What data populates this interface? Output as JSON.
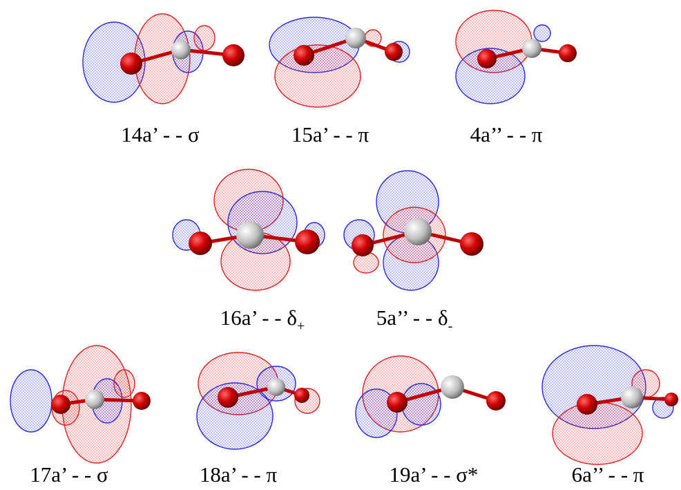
{
  "orbitals": [
    {
      "label": "14a’ - - σ"
    },
    {
      "label": "15a’ - - π"
    },
    {
      "label": "4a’’ - - π"
    },
    {
      "label": "16a’ - - δ",
      "subscript": "+"
    },
    {
      "label": "5a’’ - - δ",
      "subscript": "-"
    },
    {
      "label": "17a’ - - σ"
    },
    {
      "label": "18a’ - - π"
    },
    {
      "label": "19a’ - - σ*"
    },
    {
      "label": "6a’’ - - π"
    }
  ]
}
